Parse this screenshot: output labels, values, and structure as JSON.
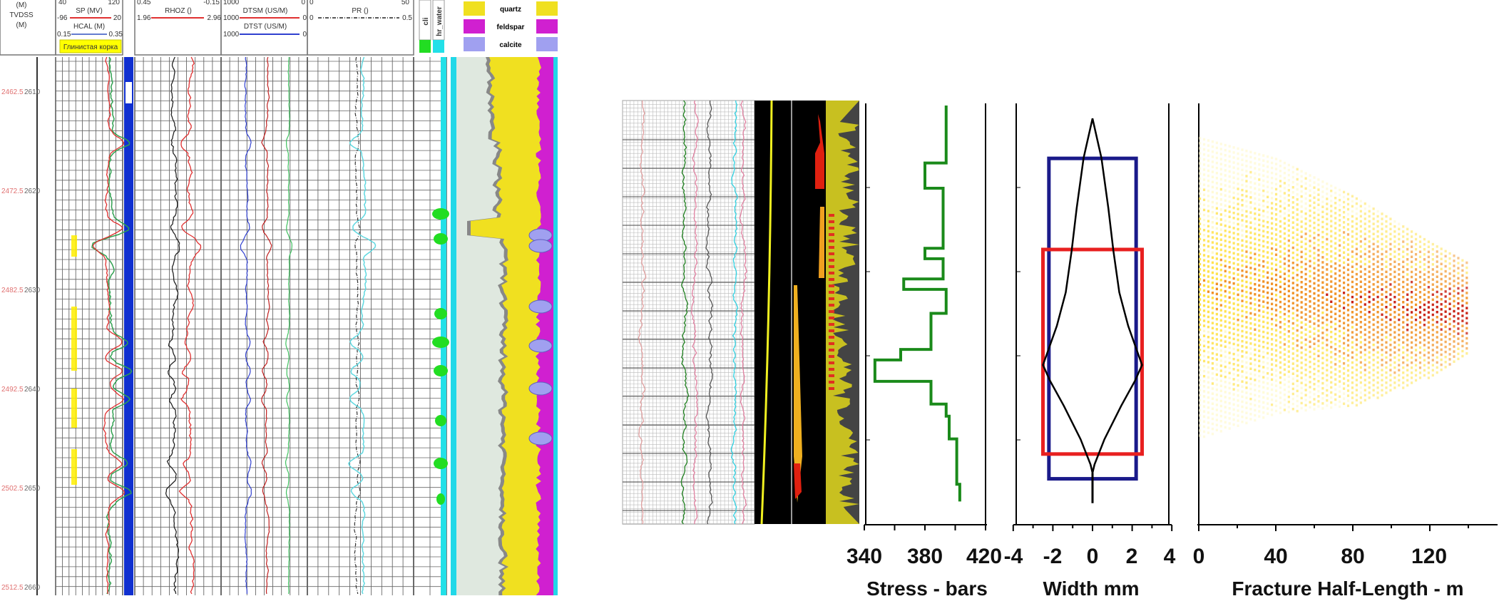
{
  "log_panel": {
    "depth_header": [
      "(M)",
      "TVDSS",
      "(M)"
    ],
    "depth_labels": [
      {
        "tvdss": "2462.5",
        "md": "2610"
      },
      {
        "tvdss": "2472.5",
        "md": "2620"
      },
      {
        "tvdss": "2482.5",
        "md": "2630"
      },
      {
        "tvdss": "2492.5",
        "md": "2640"
      },
      {
        "tvdss": "2502.5",
        "md": "2650"
      },
      {
        "tvdss": "2512.5",
        "md": "2660"
      }
    ],
    "track1": {
      "top_min": "40",
      "top_max": "120",
      "sp": {
        "name": "SP (MV)",
        "min": "-96",
        "max": "20",
        "color": "#e03030"
      },
      "hcal": {
        "name": "HCAL (M)",
        "min": "0.15",
        "max": "0.35",
        "color": "#3050c0"
      },
      "mudcake_label": "Глинистая корка"
    },
    "track2": {
      "top_min": "0.45",
      "top_max": "-0.15",
      "rhoz": {
        "name": "RHOZ ()",
        "min": "1.96",
        "max": "2.96",
        "color": "#e03030"
      }
    },
    "track3": {
      "top_min": "1000",
      "top_max": "0",
      "dtsm": {
        "name": "DTSM (US/M)",
        "min": "1000",
        "max": "0",
        "color": "#e03030"
      },
      "dtst": {
        "name": "DTST (US/M)",
        "min": "1000",
        "max": "0",
        "color": "#3040d0"
      }
    },
    "track4": {
      "top_min": "0",
      "top_max": "50",
      "pr": {
        "name": "PR ()",
        "min": "0",
        "max": "0.5",
        "color": "#222222"
      }
    },
    "fluid_track": {
      "labels": [
        "cli",
        "hr_water"
      ],
      "colors": [
        "#22dd22",
        "#22e0e8"
      ]
    },
    "lithology_legend": [
      {
        "label": "quartz",
        "color": "#f0e020"
      },
      {
        "label": "feldspar",
        "color": "#d020d0"
      },
      {
        "label": "calcite",
        "color": "#a0a0f0"
      }
    ]
  },
  "chart_data": [
    {
      "type": "line",
      "title": "",
      "xlabel": "Stress - bars",
      "ylabel": "",
      "xlim": [
        340,
        420
      ],
      "xticks": [
        "340",
        "380",
        "420"
      ],
      "y_units": "relative depth (0 = top, 1 = bottom)",
      "color": "#1a8a1a",
      "steps": [
        {
          "from": 0.005,
          "to": 0.142,
          "stress": 394
        },
        {
          "from": 0.142,
          "to": 0.202,
          "stress": 380
        },
        {
          "from": 0.202,
          "to": 0.345,
          "stress": 392
        },
        {
          "from": 0.345,
          "to": 0.37,
          "stress": 380
        },
        {
          "from": 0.37,
          "to": 0.418,
          "stress": 392
        },
        {
          "from": 0.418,
          "to": 0.443,
          "stress": 366
        },
        {
          "from": 0.443,
          "to": 0.5,
          "stress": 394
        },
        {
          "from": 0.5,
          "to": 0.586,
          "stress": 384
        },
        {
          "from": 0.586,
          "to": 0.611,
          "stress": 364
        },
        {
          "from": 0.611,
          "to": 0.662,
          "stress": 347
        },
        {
          "from": 0.662,
          "to": 0.716,
          "stress": 384
        },
        {
          "from": 0.716,
          "to": 0.745,
          "stress": 394
        },
        {
          "from": 0.745,
          "to": 0.799,
          "stress": 396
        },
        {
          "from": 0.799,
          "to": 0.907,
          "stress": 401
        },
        {
          "from": 0.907,
          "to": 0.948,
          "stress": 403
        }
      ]
    },
    {
      "type": "line",
      "title": "",
      "xlabel": "Width  mm",
      "xlim": [
        -4,
        4
      ],
      "xticks": [
        "-4",
        "-2",
        "0",
        "2",
        "4"
      ],
      "y_units": "relative depth (0 = top, 1 = bottom)",
      "width_profile": [
        {
          "depth": 0.036,
          "half_width": 0.0
        },
        {
          "depth": 0.13,
          "half_width": 0.45
        },
        {
          "depth": 0.25,
          "half_width": 0.8
        },
        {
          "depth": 0.35,
          "half_width": 1.05
        },
        {
          "depth": 0.45,
          "half_width": 1.35
        },
        {
          "depth": 0.53,
          "half_width": 1.8
        },
        {
          "depth": 0.59,
          "half_width": 2.25
        },
        {
          "depth": 0.623,
          "half_width": 2.5
        },
        {
          "depth": 0.66,
          "half_width": 2.15
        },
        {
          "depth": 0.72,
          "half_width": 1.45
        },
        {
          "depth": 0.8,
          "half_width": 0.6
        },
        {
          "depth": 0.86,
          "half_width": 0.1
        },
        {
          "depth": 0.88,
          "half_width": 0.0
        }
      ],
      "stem_bottom": 0.952,
      "boxes": [
        {
          "name": "blue",
          "color": "#1a1a8a",
          "half_width": 2.2,
          "top": 0.131,
          "bottom": 0.894
        },
        {
          "name": "red",
          "color": "#e82020",
          "half_width": 2.5,
          "top": 0.348,
          "bottom": 0.835
        }
      ]
    },
    {
      "type": "heatmap",
      "title": "",
      "xlabel": "Fracture Half-Length - m",
      "xlim": [
        0,
        155
      ],
      "xticks": [
        "0",
        "40",
        "80",
        "120"
      ],
      "y_units": "relative depth (0 = top, 1 = bottom)",
      "envelope": [
        {
          "half_length": 0,
          "top": 0.08,
          "bottom": 0.8
        },
        {
          "half_length": 40,
          "top": 0.13,
          "bottom": 0.74
        },
        {
          "half_length": 80,
          "top": 0.22,
          "bottom": 0.72
        },
        {
          "half_length": 120,
          "top": 0.33,
          "bottom": 0.65
        },
        {
          "half_length": 140,
          "top": 0.38,
          "bottom": 0.6
        }
      ],
      "colormap": [
        "#fff8c0",
        "#ffe040",
        "#f09020",
        "#c82010"
      ]
    }
  ]
}
